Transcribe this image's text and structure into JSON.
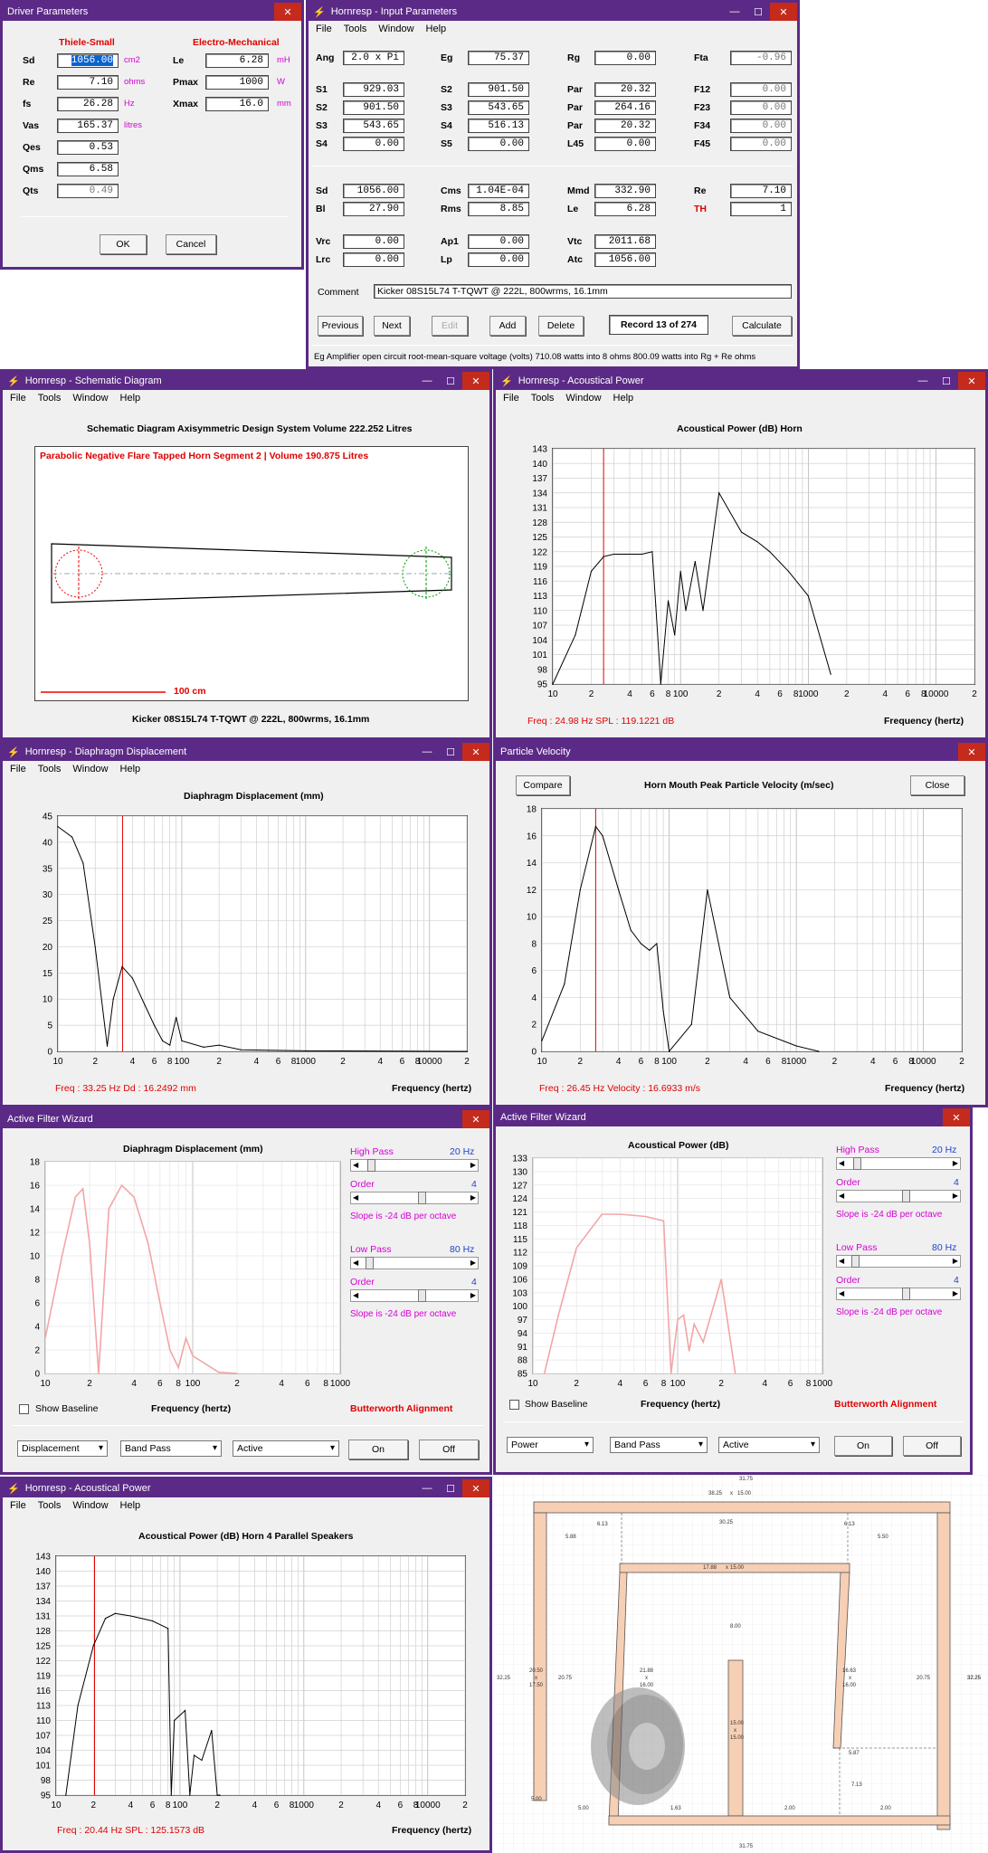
{
  "driver": {
    "title": "Driver Parameters",
    "ts_header": "Thiele-Small",
    "em_header": "Electro-Mechanical",
    "rows": [
      {
        "label": "Sd",
        "value": "1056.00",
        "unit": "cm2"
      },
      {
        "label": "Re",
        "value": "7.10",
        "unit": "ohms"
      },
      {
        "label": "fs",
        "value": "26.28",
        "unit": "Hz"
      },
      {
        "label": "Vas",
        "value": "165.37",
        "unit": "litres"
      },
      {
        "label": "Qes",
        "value": "0.53",
        "unit": ""
      },
      {
        "label": "Qms",
        "value": "6.58",
        "unit": ""
      },
      {
        "label": "Qts",
        "value": "0.49",
        "unit": ""
      }
    ],
    "em": [
      {
        "label": "Le",
        "value": "6.28",
        "unit": "mH"
      },
      {
        "label": "Pmax",
        "value": "1000",
        "unit": "W"
      },
      {
        "label": "Xmax",
        "value": "16.0",
        "unit": "mm"
      }
    ],
    "ok": "OK",
    "cancel": "Cancel"
  },
  "input": {
    "title": "Hornresp - Input Parameters",
    "menu": [
      "File",
      "Tools",
      "Window",
      "Help"
    ],
    "g1": [
      {
        "l": "Ang",
        "v": "2.0 x Pi"
      },
      {
        "l": "Eg",
        "v": "75.37"
      },
      {
        "l": "Rg",
        "v": "0.00"
      },
      {
        "l": "Fta",
        "v": "-0.96"
      }
    ],
    "g2": [
      [
        "S1",
        "929.03",
        "S2",
        "901.50",
        "Par",
        "20.32",
        "F12",
        "0.00"
      ],
      [
        "S2",
        "901.50",
        "S3",
        "543.65",
        "Par",
        "264.16",
        "F23",
        "0.00"
      ],
      [
        "S3",
        "543.65",
        "S4",
        "516.13",
        "Par",
        "20.32",
        "F34",
        "0.00"
      ],
      [
        "S4",
        "0.00",
        "S5",
        "0.00",
        "L45",
        "0.00",
        "F45",
        "0.00"
      ]
    ],
    "g3": [
      [
        "Sd",
        "1056.00",
        "Cms",
        "1.04E-04",
        "Mmd",
        "332.90",
        "Re",
        "7.10"
      ],
      [
        "Bl",
        "27.90",
        "Rms",
        "8.85",
        "Le",
        "6.28",
        "TH",
        "1"
      ]
    ],
    "g4": [
      [
        "Vrc",
        "0.00",
        "Ap1",
        "0.00",
        "Vtc",
        "2011.68"
      ],
      [
        "Lrc",
        "0.00",
        "Lp",
        "0.00",
        "Atc",
        "1056.00"
      ]
    ],
    "comment_label": "Comment",
    "comment": "Kicker 08S15L74 T-TQWT @ 222L, 800wrms, 16.1mm",
    "buttons": [
      "Previous",
      "Next",
      "Edit",
      "Add",
      "Delete"
    ],
    "record": "Record 13 of 274",
    "calculate": "Calculate",
    "status": "Eg   Amplifier open circuit root-mean-square voltage  (volts)   710.08 watts into 8 ohms   800.09 watts into Rg + Re ohms"
  },
  "schematic": {
    "title": "Hornresp - Schematic Diagram",
    "menu": [
      "File",
      "Tools",
      "Window",
      "Help"
    ],
    "header": "Schematic Diagram    Axisymmetric Design    System Volume 222.252 Litres",
    "segment": "Parabolic Negative Flare Tapped Horn Segment 2 | Volume 190.875 Litres",
    "scale": "100 cm",
    "footer": "Kicker 08S15L74 T-TQWT @ 222L, 800wrms, 16.1mm"
  },
  "ap1": {
    "title": "Hornresp - Acoustical Power",
    "menu": [
      "File",
      "Tools",
      "Window",
      "Help"
    ],
    "chart_title": "Acoustical Power (dB)    Horn",
    "status": "Freq : 24.98 Hz    SPL : 119.1221 dB",
    "xlabel": "Frequency (hertz)"
  },
  "dd": {
    "title": "Hornresp - Diaphragm Displacement",
    "menu": [
      "File",
      "Tools",
      "Window",
      "Help"
    ],
    "chart_title": "Diaphragm Displacement (mm)",
    "status": "Freq : 33.25 Hz    Dd : 16.2492 mm",
    "xlabel": "Frequency (hertz)"
  },
  "pv": {
    "title": "Particle Velocity",
    "compare": "Compare",
    "chart_title": "Horn Mouth Peak Particle Velocity (m/sec)",
    "close": "Close",
    "status": "Freq : 26.45 Hz    Velocity : 16.6933 m/s",
    "xlabel": "Frequency (hertz)"
  },
  "afw1": {
    "title": "Active Filter Wizard",
    "chart_title": "Diaphragm Displacement (mm)",
    "xlabel": "Frequency (hertz)",
    "show_baseline": "Show Baseline",
    "alignment": "Butterworth Alignment",
    "high_pass": "High Pass",
    "hp_val": "20 Hz",
    "order": "Order",
    "order_val": "4",
    "slope": "Slope is -24 dB per octave",
    "low_pass": "Low Pass",
    "lp_val": "80 Hz",
    "sel1": "Displacement",
    "sel2": "Band Pass",
    "sel3": "Active",
    "on": "On",
    "off": "Off"
  },
  "afw2": {
    "title": "Active Filter Wizard",
    "chart_title": "Acoustical Power (dB)",
    "xlabel": "Frequency (hertz)",
    "show_baseline": "Show Baseline",
    "alignment": "Butterworth Alignment",
    "high_pass": "High Pass",
    "hp_val": "20 Hz",
    "order": "Order",
    "order_val": "4",
    "slope": "Slope is -24 dB per octave",
    "low_pass": "Low Pass",
    "lp_val": "80 Hz",
    "sel1": "Power",
    "sel2": "Band Pass",
    "sel3": "Active",
    "on": "On",
    "off": "Off"
  },
  "ap2": {
    "title": "Hornresp - Acoustical Power",
    "menu": [
      "File",
      "Tools",
      "Window",
      "Help"
    ],
    "chart_title": "Acoustical Power (dB)    Horn    4 Parallel Speakers",
    "status": "Freq : 20.44 Hz    SPL : 125.1573 dB",
    "xlabel": "Frequency (hertz)"
  },
  "cad": {
    "labels": [
      "31.75",
      "38.25",
      "x",
      "15.00",
      "30.25",
      "6.13",
      "5.88",
      "17.88",
      "x",
      "15.00",
      "6.13",
      "5.50",
      "8.00",
      "20.50",
      "x",
      "17.50",
      "20.75",
      "32.25",
      "21.88",
      "x",
      "16.00",
      "16.63",
      "x",
      "16.00",
      "20.75",
      "32.25",
      "32.25",
      "15.00",
      "x",
      "15.00",
      "5.87",
      "7.13",
      "5.00",
      "5.00",
      "1.63",
      "2.00",
      "2.00",
      "31.75"
    ]
  },
  "chart_data": [
    {
      "type": "line",
      "title": "Acoustical Power (dB)    Horn",
      "xlabel": "Frequency (hertz)",
      "ylabel": "",
      "xscale": "log",
      "xlim": [
        10,
        20000
      ],
      "ylim": [
        95,
        143
      ],
      "x": [
        10,
        15,
        20,
        25,
        30,
        40,
        50,
        60,
        64,
        70,
        80,
        90,
        100,
        110,
        130,
        150,
        200,
        300,
        400,
        500,
        700,
        1000,
        1500
      ],
      "series": [
        {
          "name": "",
          "values": [
            95,
            105,
            118,
            121,
            121.5,
            121.5,
            121.5,
            122,
            111,
            95,
            112,
            105,
            118,
            110,
            120,
            110,
            134,
            126,
            124,
            122,
            118,
            113,
            97
          ]
        }
      ]
    },
    {
      "type": "line",
      "title": "Diaphragm Displacement (mm)",
      "xlabel": "Frequency (hertz)",
      "ylabel": "",
      "xscale": "log",
      "xlim": [
        10,
        20000
      ],
      "ylim": [
        0,
        45
      ],
      "x": [
        10,
        13,
        16,
        20,
        25,
        28,
        33,
        40,
        50,
        60,
        70,
        80,
        90,
        100,
        150,
        200,
        300,
        500,
        1000,
        20000
      ],
      "series": [
        {
          "name": "",
          "values": [
            43,
            41,
            36,
            20,
            1,
            10,
            16.2,
            14,
            9,
            5,
            2,
            1.2,
            6.5,
            2,
            0.8,
            1.2,
            0.3,
            0.2,
            0.1,
            0
          ]
        }
      ]
    },
    {
      "type": "line",
      "title": "Horn Mouth Peak Particle Velocity (m/sec)",
      "xlabel": "Frequency (hertz)",
      "ylabel": "",
      "xscale": "log",
      "xlim": [
        10,
        20000
      ],
      "ylim": [
        0,
        18
      ],
      "x": [
        10,
        15,
        20,
        26.45,
        30,
        40,
        50,
        60,
        70,
        80,
        90,
        100,
        150,
        200,
        300,
        500,
        1000,
        1500
      ],
      "series": [
        {
          "name": "",
          "values": [
            0.8,
            5,
            12,
            16.7,
            16,
            12,
            9,
            8,
            7.5,
            8,
            3,
            0,
            2,
            12,
            4,
            1.5,
            0.4,
            0
          ]
        }
      ]
    },
    {
      "type": "line",
      "title": "Diaphragm Displacement (mm)",
      "xlabel": "Frequency (hertz)",
      "ylabel": "",
      "xscale": "log",
      "xlim": [
        10,
        20000
      ],
      "ylim": [
        0,
        18
      ],
      "x": [
        10,
        13,
        16,
        18,
        20,
        23,
        27,
        33,
        40,
        50,
        60,
        70,
        80,
        90,
        100,
        150,
        200
      ],
      "series": [
        {
          "name": "",
          "values": [
            3,
            10,
            15,
            15.7,
            11,
            0,
            14,
            16,
            15,
            11,
            6,
            2,
            0.5,
            3,
            1.5,
            0.1,
            0
          ]
        }
      ]
    },
    {
      "type": "line",
      "title": "Acoustical Power (dB)",
      "xlabel": "Frequency (hertz)",
      "ylabel": "",
      "xscale": "log",
      "xlim": [
        10,
        20000
      ],
      "ylim": [
        85,
        133
      ],
      "x": [
        12,
        15,
        20,
        30,
        40,
        60,
        80,
        90,
        100,
        110,
        120,
        130,
        150,
        200,
        250
      ],
      "series": [
        {
          "name": "",
          "values": [
            85,
            98,
            113,
            120.5,
            120.5,
            120,
            119,
            85,
            97,
            98,
            90,
            96,
            92,
            106,
            85
          ]
        }
      ]
    },
    {
      "type": "line",
      "title": "Acoustical Power (dB)    Horn    4 Parallel Speakers",
      "xlabel": "Frequency (hertz)",
      "ylabel": "",
      "xscale": "log",
      "xlim": [
        10,
        20000
      ],
      "ylim": [
        95,
        143
      ],
      "x": [
        12,
        15,
        20,
        25,
        30,
        40,
        60,
        80,
        85,
        90,
        110,
        120,
        130,
        150,
        180,
        200,
        210
      ],
      "series": [
        {
          "name": "",
          "values": [
            95,
            113,
            125,
            130.5,
            131.5,
            131,
            130,
            128.5,
            95,
            110,
            112,
            95,
            103,
            102,
            108,
            95,
            95
          ]
        }
      ]
    }
  ]
}
